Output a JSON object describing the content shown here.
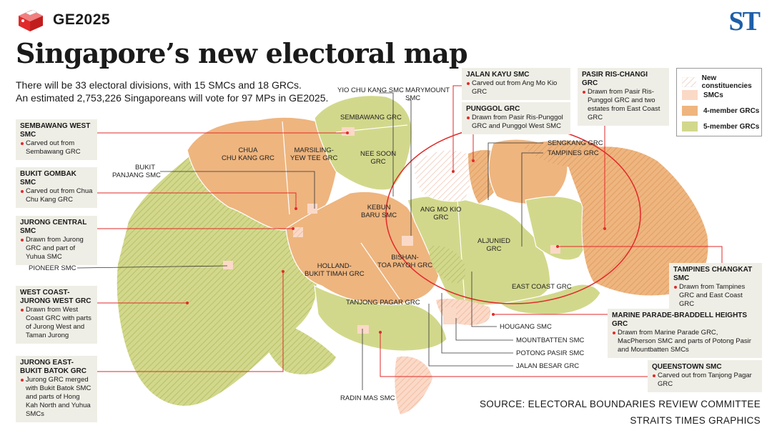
{
  "header": {
    "tag": "GE2025",
    "brand": "ST",
    "title": "Singapore’s new electoral map",
    "subtitle_line1": "There will be 33 electoral divisions, with 15 SMCs and 18 GRCs.",
    "subtitle_line2": "An estimated 2,753,226 Singaporeans will vote for 97 MPs in GE2025."
  },
  "legend": {
    "items": [
      {
        "label": "New constituencies",
        "key": "new"
      },
      {
        "label": "SMCs",
        "key": "smc"
      },
      {
        "label": "4-member GRCs",
        "key": "grc4"
      },
      {
        "label": "5-member GRCs",
        "key": "grc5"
      }
    ]
  },
  "colors": {
    "smc": "#fbd9c7",
    "grc4": "#eeb57f",
    "grc5": "#d2d88b",
    "grc5_border": "#b8c06a",
    "leader_red": "#e12a2a",
    "box_bg": "#efeee6",
    "brand_blue": "#1d5fa8"
  },
  "callouts": {
    "sembawang_west": {
      "title": "SEMBAWANG WEST SMC",
      "desc": "Carved out from Sembawang GRC"
    },
    "bukit_gombak": {
      "title": "BUKIT GOMBAK SMC",
      "desc": "Carved out from Chua Chu Kang GRC"
    },
    "jurong_central": {
      "title": "JURONG CENTRAL SMC",
      "desc": "Drawn from Jurong GRC and part of Yuhua SMC"
    },
    "west_coast": {
      "title": "WEST COAST-\nJURONG WEST GRC",
      "desc": "Drawn from West Coast GRC with parts of Jurong West and Taman Jurong"
    },
    "jurong_east": {
      "title": "JURONG EAST-\nBUKIT BATOK GRC",
      "desc": "Jurong GRC merged with Bukit Batok SMC and parts of Hong Kah North and Yuhua SMCs"
    },
    "jalan_kayu": {
      "title": "JALAN KAYU SMC",
      "desc": "Carved out from Ang Mo Kio GRC"
    },
    "punggol": {
      "title": "PUNGGOL GRC",
      "desc": "Drawn from Pasir Ris-Punggol GRC and Punggol West SMC"
    },
    "pasir_ris": {
      "title": "PASIR RIS-CHANGI GRC",
      "desc": "Drawn from Pasir Ris-Punggol GRC and two estates from East Coast GRC"
    },
    "tampines_changkat": {
      "title": "TAMPINES CHANGKAT SMC",
      "desc": "Drawn from Tampines GRC and East Coast GRC"
    },
    "marine_parade": {
      "title": "MARINE PARADE-BRADDELL HEIGHTS GRC",
      "desc": "Drawn from Marine Parade GRC, MacPherson SMC and parts of Potong Pasir and Mountbatten SMCs"
    },
    "queenstown": {
      "title": "QUEENSTOWN SMC",
      "desc": "Carved out from Tanjong Pagar GRC"
    }
  },
  "labels": {
    "yio_chu_kang": "YIO CHU KANG SMC",
    "marymount": "MARYMOUNT\nSMC",
    "sembawang": "SEMBAWANG GRC",
    "chua_chu_kang": "CHUA\nCHU KANG GRC",
    "marsiling": "MARSILING-\nYEW TEE GRC",
    "nee_soon": "NEE SOON\nGRC",
    "bukit_panjang": "BUKIT\nPANJANG SMC",
    "kebun_baru": "KEBUN\nBARU SMC",
    "ang_mo_kio": "ANG MO KIO\nGRC",
    "aljunied": "ALJUNIED\nGRC",
    "sengkang": "SENGKANG GRC",
    "tampines": "TAMPINES GRC",
    "pioneer": "PIONEER SMC",
    "holland": "HOLLAND-\nBUKIT TIMAH GRC",
    "bishan": "BISHAN-\nTOA PAYOH GRC",
    "east_coast": "EAST COAST GRC",
    "tanjong_pagar": "TANJONG PAGAR GRC",
    "hougang": "HOUGANG SMC",
    "mountbatten": "MOUNTBATTEN SMC",
    "potong_pasir": "POTONG PASIR SMC",
    "jalan_besar": "JALAN BESAR GRC",
    "radin_mas": "RADIN MAS SMC"
  },
  "source": {
    "line1": "SOURCE: ELECTORAL BOUNDARIES REVIEW COMMITTEE",
    "line2": "STRAITS TIMES GRAPHICS"
  }
}
